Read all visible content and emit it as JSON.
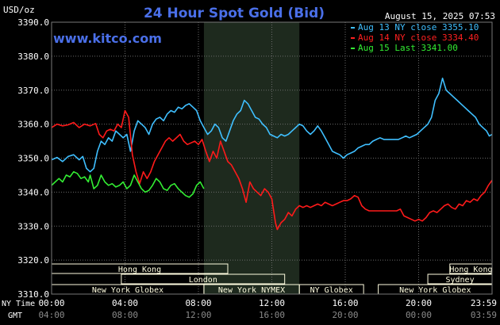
{
  "header": {
    "title": "24 Hour Spot Gold (Bid)",
    "unit": "USD/oz",
    "datetime": "August 15, 2025 07:53",
    "site": "www.kitco.com"
  },
  "colors": {
    "background": "#000000",
    "title": "#4a6fe8",
    "site": "#4a6fe8",
    "axis_text": "#ffffff",
    "grid": "#6a6a6a",
    "session_shade": "#1e2a1e",
    "market_bar": "#fffde0",
    "series_aug13": "#3fbfff",
    "series_aug14": "#ff1a1a",
    "series_aug15": "#33ee33"
  },
  "legend": [
    {
      "text": "Aug 13 NY close 3355.10",
      "color": "#3fbfff"
    },
    {
      "text": "Aug 14 NY close 3334.40",
      "color": "#ff2020"
    },
    {
      "text": "Aug 15 Last 3341.00",
      "color": "#33ee33"
    }
  ],
  "chart_data": {
    "type": "line",
    "title": "24 Hour Spot Gold (Bid)",
    "ylabel": "USD/oz",
    "ylim": [
      3310,
      3390
    ],
    "yticks": [
      "3390.0",
      "3380.0",
      "3370.0",
      "3360.0",
      "3350.0",
      "3340.0",
      "3330.0",
      "3320.0",
      "3310.0"
    ],
    "xlim": [
      0,
      24
    ],
    "x_unit": "NY Time hours",
    "xticks_ny": [
      "00:00",
      "04:00",
      "08:00",
      "12:00",
      "16:00",
      "20:00",
      "23:59"
    ],
    "xticks_gmt": [
      "04:00",
      "08:00",
      "12:00",
      "16:00",
      "20:00",
      "00:00",
      "03:59"
    ],
    "x_row_labels": [
      "NY Time",
      "GMT"
    ],
    "grid": true,
    "shaded_session_hours": [
      8.3,
      13.5
    ],
    "series": [
      {
        "name": "Aug 13",
        "color": "#3fbfff",
        "points": [
          [
            0,
            3349.5
          ],
          [
            0.3,
            3350.2
          ],
          [
            0.6,
            3349
          ],
          [
            0.9,
            3350.5
          ],
          [
            1.2,
            3351
          ],
          [
            1.5,
            3349.5
          ],
          [
            1.7,
            3350.5
          ],
          [
            1.9,
            3347
          ],
          [
            2.1,
            3346
          ],
          [
            2.3,
            3347
          ],
          [
            2.5,
            3352
          ],
          [
            2.7,
            3355
          ],
          [
            2.9,
            3354
          ],
          [
            3.1,
            3356
          ],
          [
            3.3,
            3355
          ],
          [
            3.5,
            3358
          ],
          [
            3.7,
            3357
          ],
          [
            3.9,
            3356
          ],
          [
            4.1,
            3357
          ],
          [
            4.3,
            3352
          ],
          [
            4.5,
            3358
          ],
          [
            4.7,
            3361
          ],
          [
            4.9,
            3360
          ],
          [
            5.1,
            3359
          ],
          [
            5.3,
            3357
          ],
          [
            5.5,
            3360
          ],
          [
            5.7,
            3361.5
          ],
          [
            5.9,
            3362
          ],
          [
            6.1,
            3361
          ],
          [
            6.3,
            3363
          ],
          [
            6.5,
            3364
          ],
          [
            6.7,
            3363.5
          ],
          [
            6.9,
            3365
          ],
          [
            7.1,
            3364.5
          ],
          [
            7.3,
            3365.5
          ],
          [
            7.5,
            3366
          ],
          [
            7.7,
            3365
          ],
          [
            7.9,
            3364
          ],
          [
            8.1,
            3361
          ],
          [
            8.3,
            3359
          ],
          [
            8.5,
            3357
          ],
          [
            8.7,
            3358
          ],
          [
            8.9,
            3360
          ],
          [
            9.1,
            3359
          ],
          [
            9.3,
            3356
          ],
          [
            9.5,
            3355
          ],
          [
            9.7,
            3358
          ],
          [
            9.9,
            3361
          ],
          [
            10.1,
            3363
          ],
          [
            10.3,
            3364
          ],
          [
            10.5,
            3367
          ],
          [
            10.7,
            3366
          ],
          [
            10.9,
            3364
          ],
          [
            11.1,
            3362
          ],
          [
            11.3,
            3361.5
          ],
          [
            11.5,
            3360
          ],
          [
            11.7,
            3359
          ],
          [
            11.9,
            3357
          ],
          [
            12.1,
            3356.5
          ],
          [
            12.3,
            3356
          ],
          [
            12.5,
            3357
          ],
          [
            12.7,
            3356.5
          ],
          [
            12.9,
            3357
          ],
          [
            13.1,
            3358
          ],
          [
            13.3,
            3359
          ],
          [
            13.5,
            3360
          ],
          [
            13.7,
            3359.5
          ],
          [
            13.9,
            3358
          ],
          [
            14.1,
            3357
          ],
          [
            14.3,
            3358
          ],
          [
            14.5,
            3359.5
          ],
          [
            14.7,
            3358
          ],
          [
            14.9,
            3356
          ],
          [
            15.1,
            3354
          ],
          [
            15.3,
            3352
          ],
          [
            15.5,
            3351.5
          ],
          [
            15.7,
            3351
          ],
          [
            15.9,
            3350
          ],
          [
            16.1,
            3351
          ],
          [
            16.3,
            3351.5
          ],
          [
            16.5,
            3352
          ],
          [
            16.7,
            3353
          ],
          [
            16.9,
            3353.5
          ],
          [
            17.1,
            3354
          ],
          [
            17.3,
            3354
          ],
          [
            17.5,
            3355
          ],
          [
            17.7,
            3355.5
          ],
          [
            17.9,
            3356
          ],
          [
            18.1,
            3355.5
          ],
          [
            18.3,
            3355.5
          ],
          [
            18.5,
            3355.5
          ],
          [
            18.7,
            3355.5
          ],
          [
            18.9,
            3355.5
          ],
          [
            19.1,
            3356
          ],
          [
            19.3,
            3356.5
          ],
          [
            19.5,
            3356
          ],
          [
            19.7,
            3356.5
          ],
          [
            19.9,
            3357
          ],
          [
            20.1,
            3358
          ],
          [
            20.3,
            3359
          ],
          [
            20.5,
            3360
          ],
          [
            20.7,
            3362
          ],
          [
            20.9,
            3367
          ],
          [
            21.1,
            3369
          ],
          [
            21.3,
            3373.5
          ],
          [
            21.5,
            3370
          ],
          [
            21.7,
            3369
          ],
          [
            21.9,
            3368
          ],
          [
            22.1,
            3367
          ],
          [
            22.3,
            3366
          ],
          [
            22.5,
            3365
          ],
          [
            22.7,
            3364
          ],
          [
            22.9,
            3363
          ],
          [
            23.1,
            3362
          ],
          [
            23.3,
            3360
          ],
          [
            23.5,
            3359
          ],
          [
            23.7,
            3358
          ],
          [
            23.85,
            3356.5
          ],
          [
            24,
            3357
          ]
        ]
      },
      {
        "name": "Aug 14",
        "color": "#ff1a1a",
        "points": [
          [
            0,
            3359
          ],
          [
            0.3,
            3360
          ],
          [
            0.6,
            3359.5
          ],
          [
            0.9,
            3359.8
          ],
          [
            1.2,
            3360.5
          ],
          [
            1.5,
            3359
          ],
          [
            1.8,
            3360
          ],
          [
            2.1,
            3359.5
          ],
          [
            2.4,
            3360.2
          ],
          [
            2.6,
            3357
          ],
          [
            2.8,
            3356
          ],
          [
            3.0,
            3358
          ],
          [
            3.2,
            3358.5
          ],
          [
            3.4,
            3358
          ],
          [
            3.6,
            3360
          ],
          [
            3.8,
            3359
          ],
          [
            4.0,
            3364
          ],
          [
            4.2,
            3362
          ],
          [
            4.4,
            3351
          ],
          [
            4.6,
            3346
          ],
          [
            4.8,
            3342.5
          ],
          [
            5.0,
            3346
          ],
          [
            5.2,
            3344
          ],
          [
            5.4,
            3346
          ],
          [
            5.6,
            3349
          ],
          [
            5.8,
            3351
          ],
          [
            6.0,
            3353
          ],
          [
            6.2,
            3355
          ],
          [
            6.4,
            3356
          ],
          [
            6.6,
            3355
          ],
          [
            6.8,
            3356
          ],
          [
            7.0,
            3357
          ],
          [
            7.2,
            3355
          ],
          [
            7.4,
            3354
          ],
          [
            7.6,
            3354.5
          ],
          [
            7.8,
            3355
          ],
          [
            8.0,
            3354
          ],
          [
            8.2,
            3355.5
          ],
          [
            8.4,
            3352
          ],
          [
            8.6,
            3349
          ],
          [
            8.8,
            3352
          ],
          [
            9.0,
            3350
          ],
          [
            9.2,
            3355
          ],
          [
            9.4,
            3352
          ],
          [
            9.6,
            3349
          ],
          [
            9.8,
            3348
          ],
          [
            10.0,
            3346
          ],
          [
            10.2,
            3344
          ],
          [
            10.4,
            3341
          ],
          [
            10.6,
            3337
          ],
          [
            10.8,
            3343
          ],
          [
            11.0,
            3341
          ],
          [
            11.2,
            3340
          ],
          [
            11.4,
            3339
          ],
          [
            11.6,
            3341
          ],
          [
            11.8,
            3340
          ],
          [
            12.0,
            3338
          ],
          [
            12.2,
            3331
          ],
          [
            12.3,
            3329
          ],
          [
            12.5,
            3331
          ],
          [
            12.7,
            3332
          ],
          [
            12.9,
            3334
          ],
          [
            13.1,
            3333
          ],
          [
            13.3,
            3335
          ],
          [
            13.5,
            3336
          ],
          [
            13.7,
            3335.5
          ],
          [
            13.9,
            3336
          ],
          [
            14.1,
            3335.5
          ],
          [
            14.3,
            3336
          ],
          [
            14.5,
            3336.5
          ],
          [
            14.7,
            3336
          ],
          [
            14.9,
            3337
          ],
          [
            15.1,
            3336.5
          ],
          [
            15.3,
            3336
          ],
          [
            15.5,
            3336.5
          ],
          [
            15.7,
            3337
          ],
          [
            15.9,
            3337.5
          ],
          [
            16.1,
            3337.5
          ],
          [
            16.3,
            3338
          ],
          [
            16.5,
            3339
          ],
          [
            16.7,
            3338.5
          ],
          [
            16.9,
            3336
          ],
          [
            17.1,
            3335
          ],
          [
            17.3,
            3334.5
          ],
          [
            17.6,
            3334.5
          ],
          [
            17.9,
            3334.5
          ],
          [
            18.2,
            3334.5
          ],
          [
            18.5,
            3334.5
          ],
          [
            18.8,
            3334.5
          ],
          [
            19.0,
            3335
          ],
          [
            19.2,
            3333
          ],
          [
            19.4,
            3332.5
          ],
          [
            19.6,
            3332
          ],
          [
            19.8,
            3331.5
          ],
          [
            20.0,
            3332
          ],
          [
            20.2,
            3331.5
          ],
          [
            20.4,
            3332.5
          ],
          [
            20.6,
            3334
          ],
          [
            20.8,
            3334.5
          ],
          [
            21.0,
            3334
          ],
          [
            21.2,
            3335
          ],
          [
            21.4,
            3336
          ],
          [
            21.6,
            3336.5
          ],
          [
            21.8,
            3335.5
          ],
          [
            22.0,
            3335
          ],
          [
            22.2,
            3336.5
          ],
          [
            22.4,
            3336
          ],
          [
            22.6,
            3337.5
          ],
          [
            22.8,
            3337
          ],
          [
            23.0,
            3338
          ],
          [
            23.2,
            3337.5
          ],
          [
            23.4,
            3339
          ],
          [
            23.6,
            3340
          ],
          [
            23.8,
            3342
          ],
          [
            24,
            3343.5
          ]
        ]
      },
      {
        "name": "Aug 15",
        "color": "#33ee33",
        "points": [
          [
            0,
            3342
          ],
          [
            0.2,
            3343
          ],
          [
            0.4,
            3344
          ],
          [
            0.6,
            3343
          ],
          [
            0.8,
            3345
          ],
          [
            1.0,
            3344.5
          ],
          [
            1.2,
            3346
          ],
          [
            1.4,
            3345.5
          ],
          [
            1.6,
            3344
          ],
          [
            1.8,
            3344.5
          ],
          [
            2.0,
            3343
          ],
          [
            2.1,
            3345
          ],
          [
            2.3,
            3341
          ],
          [
            2.5,
            3342
          ],
          [
            2.7,
            3345
          ],
          [
            2.9,
            3343
          ],
          [
            3.1,
            3342
          ],
          [
            3.3,
            3342.5
          ],
          [
            3.5,
            3341.5
          ],
          [
            3.7,
            3342
          ],
          [
            3.9,
            3343
          ],
          [
            4.1,
            3341
          ],
          [
            4.3,
            3342
          ],
          [
            4.5,
            3345
          ],
          [
            4.7,
            3343
          ],
          [
            4.9,
            3341
          ],
          [
            5.1,
            3340
          ],
          [
            5.3,
            3340.5
          ],
          [
            5.5,
            3342
          ],
          [
            5.7,
            3344
          ],
          [
            5.9,
            3343
          ],
          [
            6.1,
            3341
          ],
          [
            6.3,
            3340.5
          ],
          [
            6.5,
            3342
          ],
          [
            6.7,
            3342.5
          ],
          [
            6.9,
            3341
          ],
          [
            7.1,
            3340
          ],
          [
            7.3,
            3339
          ],
          [
            7.5,
            3338.5
          ],
          [
            7.7,
            3339.5
          ],
          [
            7.9,
            3342
          ],
          [
            8.1,
            3343
          ],
          [
            8.3,
            3341
          ]
        ]
      }
    ]
  },
  "markets_row1": [
    {
      "name": "Hong Kong",
      "start": 0,
      "end": 9.6
    },
    {
      "name": "Hong Kong",
      "start": 21.7,
      "end": 24
    }
  ],
  "markets_row2": [
    {
      "name": "London",
      "start": 3.8,
      "end": 12.7
    },
    {
      "name": "Sydney",
      "start": 20.5,
      "end": 24
    }
  ],
  "markets_row3": [
    {
      "name": "New York Globex",
      "start": 0,
      "end": 8.3
    },
    {
      "name": "New York NYMEX",
      "start": 8.3,
      "end": 13.5
    },
    {
      "name": "NY Globex",
      "start": 13.5,
      "end": 17.0
    },
    {
      "name": "New York Globex",
      "start": 17.8,
      "end": 24
    }
  ]
}
